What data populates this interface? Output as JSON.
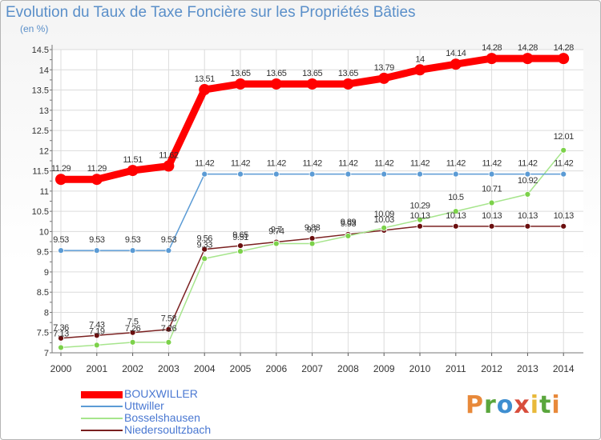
{
  "chart_data": {
    "type": "line",
    "title": "Evolution du Taux de Taxe Foncière sur les Propriétés Bâties",
    "ylabel": "(en %)",
    "xlabel": "",
    "x": [
      "2000",
      "2001",
      "2002",
      "2003",
      "2004",
      "2005",
      "2006",
      "2007",
      "2008",
      "2009",
      "2010",
      "2011",
      "2012",
      "2013",
      "2014"
    ],
    "ylim": [
      7,
      14.5
    ],
    "yticks": [
      "7",
      "7.5",
      "8",
      "8.5",
      "9",
      "9.5",
      "10",
      "10.5",
      "11",
      "11.5",
      "12",
      "12.5",
      "13",
      "13.5",
      "14",
      "14.5"
    ],
    "grid": true,
    "legend_position": "bottom-left",
    "series": [
      {
        "name": "BOUXWILLER",
        "color": "#ff0000",
        "marker": "#ff0000",
        "values": [
          11.29,
          11.29,
          11.51,
          11.62,
          13.51,
          13.65,
          13.65,
          13.65,
          13.65,
          13.79,
          14,
          14.14,
          14.28,
          14.28,
          14.28
        ],
        "labels": [
          "11.29",
          "11.29",
          "11.51",
          "11.62",
          "13.51",
          "13.65",
          "13.65",
          "13.65",
          "13.65",
          "13.79",
          "14",
          "14.14",
          "14.28",
          "14.28",
          "14.28"
        ]
      },
      {
        "name": "Uttwiller",
        "color": "#5b9bd5",
        "marker": "#5b9bd5",
        "values": [
          9.53,
          9.53,
          9.53,
          9.53,
          11.42,
          11.42,
          11.42,
          11.42,
          11.42,
          11.42,
          11.42,
          11.42,
          11.42,
          11.42,
          11.42
        ],
        "labels": [
          "9.53",
          "9.53",
          "9.53",
          "9.53",
          "11.42",
          "11.42",
          "11.42",
          "11.42",
          "11.42",
          "11.42",
          "11.42",
          "11.42",
          "11.42",
          "11.42",
          "11.42"
        ]
      },
      {
        "name": "Bosselshausen",
        "color": "#a6e58c",
        "marker": "#7cd14a",
        "values": [
          7.13,
          7.19,
          7.26,
          7.26,
          9.33,
          9.51,
          9.7,
          9.7,
          9.89,
          10.09,
          10.29,
          10.5,
          10.71,
          10.92,
          12.01
        ],
        "labels": [
          "7.13",
          "7.19",
          "7.26",
          "7.26",
          "9.33",
          "9.51",
          "9.7",
          "9.7",
          "9.89",
          "10.09",
          "10.29",
          "10.5",
          "10.71",
          "10.92",
          "12.01"
        ]
      },
      {
        "name": "Niedersoultzbach",
        "color": "#7a2020",
        "marker": "#6b0f0f",
        "values": [
          7.36,
          7.43,
          7.5,
          7.58,
          9.56,
          9.65,
          9.74,
          9.83,
          9.93,
          10.03,
          10.13,
          10.13,
          10.13,
          10.13,
          10.13
        ],
        "labels": [
          "7.36",
          "7.43",
          "7.5",
          "7.58",
          "9.56",
          "9.65",
          "9.74",
          "9.83",
          "9.93",
          "10.03",
          "10.13",
          "10.13",
          "10.13",
          "10.13",
          "10.13"
        ]
      }
    ]
  },
  "brand": {
    "letters": [
      "P",
      "r",
      "o",
      "x",
      "i",
      "t",
      "i"
    ]
  }
}
